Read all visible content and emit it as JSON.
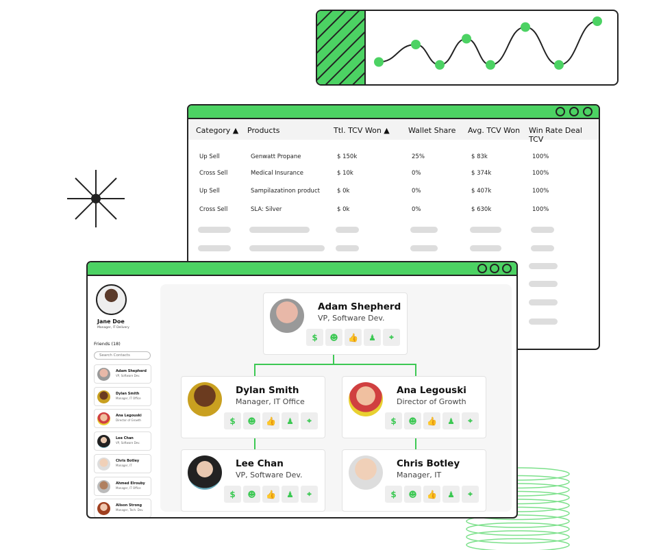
{
  "colors": {
    "accent": "#4cd263",
    "outline": "#222222"
  },
  "chart_data": {
    "type": "line",
    "values": [
      3,
      6,
      2.5,
      7,
      2.5,
      9,
      2.5,
      10
    ]
  },
  "table": {
    "headers": [
      "Category ▲",
      "Products",
      "Ttl. TCV Won ▲",
      "Wallet Share",
      "Avg. TCV Won",
      "Win Rate Deal TCV"
    ],
    "rows": [
      [
        "Up Sell",
        "Genwatt Propane",
        "$ 150k",
        "25%",
        "$ 83k",
        "100%"
      ],
      [
        "Cross Sell",
        "Medical Insurance",
        "$ 10k",
        "0%",
        "$ 374k",
        "100%"
      ],
      [
        "Up Sell",
        "Sampilazatinon product",
        "$ 0k",
        "0%",
        "$ 407k",
        "100%"
      ],
      [
        "Cross Sell",
        "SLA: Silver",
        "$ 0k",
        "0%",
        "$ 630k",
        "100%"
      ]
    ]
  },
  "sidebar": {
    "user_name": "Jane Doe",
    "user_role": "Manager, IT Delivery",
    "friends_label": "Friends (18)",
    "search_placeholder": "Search Contacts",
    "contacts": [
      {
        "name": "Adam Shepherd",
        "role": "VP, Software Dev."
      },
      {
        "name": "Dylan Smith",
        "role": "Manager, IT Office"
      },
      {
        "name": "Ana Legouski",
        "role": "Director of Growth"
      },
      {
        "name": "Lee Chan",
        "role": "VP, Software Dev."
      },
      {
        "name": "Chris Botley",
        "role": "Manager, IT"
      },
      {
        "name": "Ahmed Elrouby",
        "role": "Manager, IT Office"
      },
      {
        "name": "Alison Strong",
        "role": "Manager, Tech. Dev."
      }
    ]
  },
  "org": [
    {
      "name": "Adam Shepherd",
      "role": "VP, Software Dev."
    },
    {
      "name": "Dylan Smith",
      "role": "Manager, IT Office"
    },
    {
      "name": "Ana Legouski",
      "role": "Director of Growth"
    },
    {
      "name": "Lee Chan",
      "role": "VP, Software Dev."
    },
    {
      "name": "Chris Botley",
      "role": "Manager, IT"
    }
  ],
  "actions": {
    "dollar": "$",
    "smile": "☻",
    "thumb": "👍",
    "person": "♟",
    "target": "⌖"
  }
}
